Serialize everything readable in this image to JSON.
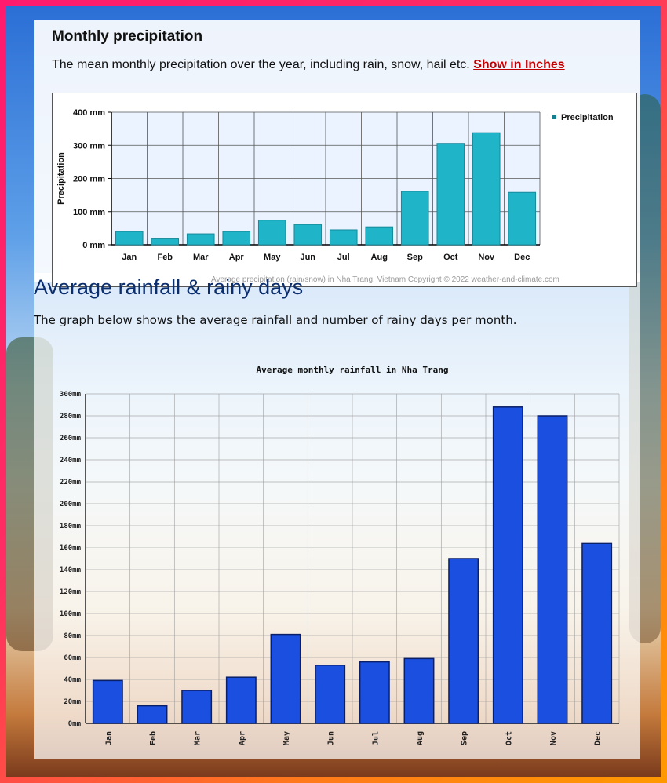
{
  "section1": {
    "title": "Monthly precipitation",
    "description": "The mean monthly precipitation over the year, including rain, snow, hail etc.",
    "link_label": "Show in Inches",
    "footer": "Average precipitation (rain/snow) in Nha Trang, Vietnam   Copyright © 2022  weather-and-climate.com"
  },
  "section2": {
    "title": "Average rainfall & rainy days",
    "description": "The graph below shows the average rainfall and number of rainy days per month."
  },
  "colors": {
    "teal_bar": "#1fb4c8",
    "blue_bar": "#1a4fe0",
    "title_blue": "#0b2e6e",
    "link_red": "#c00000"
  },
  "chart_data": [
    {
      "type": "bar",
      "title": "",
      "xlabel": "",
      "ylabel": "Precipitation",
      "categories": [
        "Jan",
        "Feb",
        "Mar",
        "Apr",
        "May",
        "Jun",
        "Jul",
        "Aug",
        "Sep",
        "Oct",
        "Nov",
        "Dec"
      ],
      "series": [
        {
          "name": "Precipitation",
          "values": [
            40,
            20,
            33,
            40,
            74,
            61,
            45,
            54,
            161,
            306,
            338,
            158
          ]
        }
      ],
      "ylim": [
        0,
        400
      ],
      "yticks": [
        0,
        100,
        200,
        300,
        400
      ],
      "ytick_labels": [
        "0 mm",
        "100 mm",
        "200 mm",
        "300 mm",
        "400 mm"
      ],
      "grid": true,
      "legend": "top-right"
    },
    {
      "type": "bar",
      "title": "Average monthly rainfall in Nha Trang",
      "xlabel": "",
      "ylabel": "",
      "categories": [
        "Jan",
        "Feb",
        "Mar",
        "Apr",
        "May",
        "Jun",
        "Jul",
        "Aug",
        "Sep",
        "Oct",
        "Nov",
        "Dec"
      ],
      "series": [
        {
          "values": [
            39,
            16,
            30,
            42,
            81,
            53,
            56,
            59,
            150,
            288,
            280,
            164
          ]
        }
      ],
      "ylim": [
        0,
        300
      ],
      "yticks": [
        0,
        20,
        40,
        60,
        80,
        100,
        120,
        140,
        160,
        180,
        200,
        220,
        240,
        260,
        280,
        300
      ],
      "ytick_labels": [
        "0mm",
        "20mm",
        "40mm",
        "60mm",
        "80mm",
        "100mm",
        "120mm",
        "140mm",
        "160mm",
        "180mm",
        "200mm",
        "220mm",
        "240mm",
        "260mm",
        "280mm",
        "300mm"
      ],
      "grid": true,
      "legend": "none"
    }
  ]
}
